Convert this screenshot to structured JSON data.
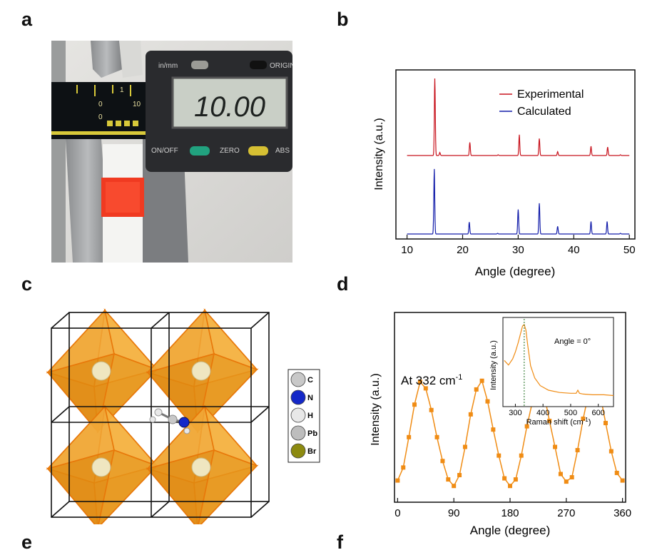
{
  "panel_labels": {
    "a": "a",
    "b": "b",
    "c": "c",
    "d": "d",
    "e": "e",
    "f": "f"
  },
  "caliper": {
    "unit_switch": "in/mm",
    "origin_button": "ORIGIN",
    "display": "10.00",
    "onoff_button": "ON/OFF",
    "zero_button": "ZERO",
    "abs_button": "ABS",
    "scale_marks": [
      "0",
      "1",
      "0",
      "10"
    ],
    "colors": {
      "body": "#2a2b2e",
      "lcd": "#c9cfc6",
      "sample": "#f03a21",
      "green_button": "#21a27f",
      "yellow_button": "#d6c033"
    }
  },
  "crystal_legend": {
    "items": [
      {
        "label": "C",
        "color": "#c8c8c8"
      },
      {
        "label": "N",
        "color": "#1428c8"
      },
      {
        "label": "H",
        "color": "#e8e8e8"
      },
      {
        "label": "Pb",
        "color": "#bdbdbd"
      },
      {
        "label": "Br",
        "color": "#8c8a10"
      }
    ],
    "octahedra_color": "#f0a020"
  },
  "chart_data": [
    {
      "panel": "b",
      "type": "line",
      "xlabel": "Angle (degree)",
      "ylabel": "Intensity (a.u.)",
      "xlim": [
        8,
        51
      ],
      "xticks": [
        10,
        20,
        30,
        40,
        50
      ],
      "legend_position": "top-right",
      "series": [
        {
          "name": "Experimental",
          "color": "#c8141e",
          "baseline": 0.55,
          "peaks": [
            [
              15.0,
              1.0
            ],
            [
              15.9,
              0.04
            ],
            [
              21.3,
              0.17
            ],
            [
              26.4,
              0.01
            ],
            [
              30.2,
              0.27
            ],
            [
              33.8,
              0.22
            ],
            [
              37.1,
              0.05
            ],
            [
              43.1,
              0.12
            ],
            [
              46.1,
              0.11
            ],
            [
              48.4,
              0.01
            ]
          ]
        },
        {
          "name": "Calculated",
          "color": "#141eaa",
          "baseline": 0.0,
          "peaks": [
            [
              14.9,
              0.93
            ],
            [
              21.2,
              0.17
            ],
            [
              26.3,
              0.01
            ],
            [
              30.0,
              0.35
            ],
            [
              33.8,
              0.44
            ],
            [
              37.1,
              0.11
            ],
            [
              43.1,
              0.18
            ],
            [
              46.0,
              0.18
            ],
            [
              48.4,
              0.01
            ]
          ]
        }
      ]
    },
    {
      "panel": "d",
      "type": "line",
      "xlabel": "Angle (degree)",
      "ylabel": "Intensity (a.u.)",
      "xlim": [
        -5,
        365
      ],
      "ylim": [
        -0.15,
        1.6
      ],
      "xticks": [
        0,
        90,
        180,
        270,
        360
      ],
      "annotation_prefix": "At 332 cm",
      "annotation_sup": "-1",
      "color": "#f08c14",
      "x": [
        0,
        9,
        18,
        27,
        36,
        45,
        54,
        63,
        72,
        81,
        90,
        99,
        108,
        117,
        126,
        135,
        144,
        153,
        162,
        171,
        180,
        189,
        198,
        207,
        216,
        225,
        234,
        243,
        252,
        261,
        270,
        279,
        288,
        297,
        306,
        315,
        324,
        333,
        342,
        351,
        360
      ],
      "y": [
        0.05,
        0.17,
        0.45,
        0.75,
        0.96,
        0.9,
        0.7,
        0.45,
        0.23,
        0.06,
        0.0,
        0.1,
        0.36,
        0.66,
        0.89,
        0.97,
        0.78,
        0.52,
        0.28,
        0.07,
        0.0,
        0.06,
        0.28,
        0.55,
        0.78,
        0.97,
        0.86,
        0.6,
        0.36,
        0.11,
        0.04,
        0.08,
        0.33,
        0.62,
        0.86,
        0.98,
        0.85,
        0.58,
        0.32,
        0.12,
        0.05
      ]
    },
    {
      "panel": "d-inset",
      "type": "line",
      "xlabel_prefix": "Raman shift (cm",
      "xlabel_sup": "-1",
      "xlabel_suffix": ")",
      "ylabel": "Intensity (a.u.)",
      "annotation": "Angle = 0°",
      "xlim": [
        255,
        655
      ],
      "xticks": [
        300,
        400,
        500,
        600
      ],
      "color": "#f08c14",
      "marker_x": 332,
      "x": [
        260,
        275,
        290,
        300,
        310,
        320,
        326,
        332,
        338,
        345,
        355,
        370,
        390,
        420,
        460,
        500,
        520,
        526,
        532,
        545,
        580,
        620,
        655
      ],
      "y": [
        0.53,
        0.47,
        0.55,
        0.64,
        0.76,
        0.9,
        0.98,
        1.0,
        0.93,
        0.72,
        0.46,
        0.3,
        0.2,
        0.14,
        0.11,
        0.1,
        0.1,
        0.14,
        0.1,
        0.09,
        0.08,
        0.08,
        0.07
      ]
    }
  ]
}
